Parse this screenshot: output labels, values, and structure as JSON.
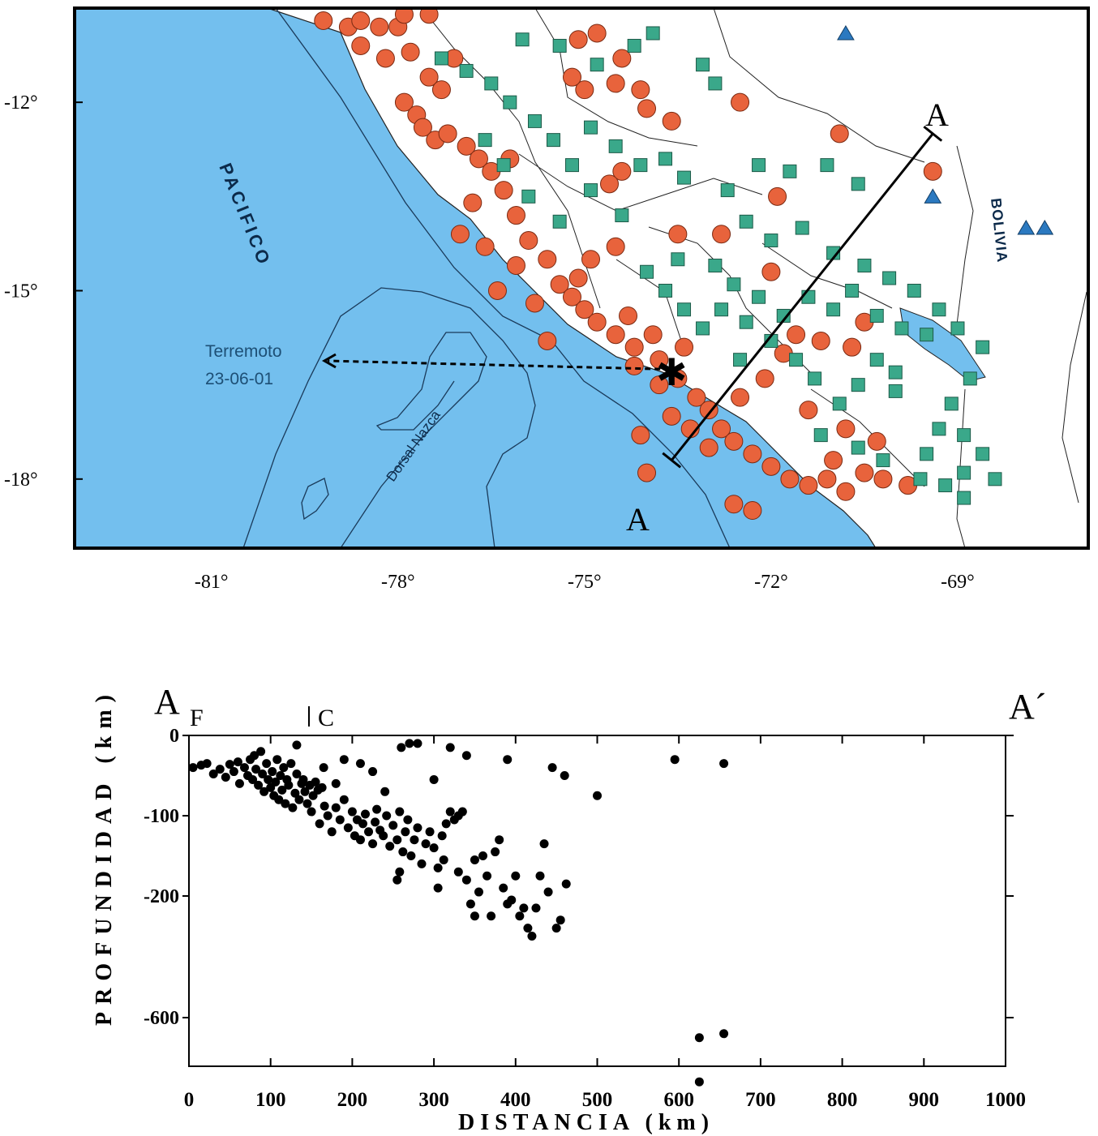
{
  "colors": {
    "ocean": "#73bfee",
    "land": "#ffffff",
    "shallow_quake": "#e8633c",
    "intermediate_quake": "#3aa88a",
    "volcano": "#2b79c0",
    "profile_dot": "#000000"
  },
  "map": {
    "labels": {
      "ocean_name": "PACIFICO",
      "country": "BOLIVIA",
      "ridge": "Dorsal Nazca",
      "quake_line1": "Terremoto",
      "quake_line2": "23-06-01",
      "section_start": "A",
      "section_end": "A"
    },
    "lon_ticks": [
      "-81°",
      "-78°",
      "-75°",
      "-72°",
      "-69°"
    ],
    "lat_ticks": [
      "-12°",
      "-15°",
      "-18°"
    ],
    "lon_range": [
      -83.2,
      -66.9
    ],
    "lat_range": [
      -10.5,
      -19.1
    ],
    "epicenter": {
      "lon": -73.6,
      "lat": -16.3
    },
    "section_line": {
      "start": [
        -73.6,
        -17.7
      ],
      "end": [
        -69.4,
        -12.5
      ]
    },
    "volcanoes": [
      [
        -70.8,
        -10.9
      ],
      [
        -69.4,
        -13.5
      ],
      [
        -67.9,
        -14.0
      ],
      [
        -67.6,
        -14.0
      ]
    ],
    "shallow_events": [
      [
        -79.2,
        -10.7
      ],
      [
        -78.8,
        -10.8
      ],
      [
        -78.6,
        -10.7
      ],
      [
        -78.3,
        -10.8
      ],
      [
        -78.0,
        -10.8
      ],
      [
        -78.6,
        -11.1
      ],
      [
        -78.2,
        -11.3
      ],
      [
        -77.8,
        -11.2
      ],
      [
        -77.5,
        -11.6
      ],
      [
        -77.3,
        -11.8
      ],
      [
        -77.9,
        -12.0
      ],
      [
        -77.7,
        -12.2
      ],
      [
        -77.6,
        -12.4
      ],
      [
        -77.4,
        -12.6
      ],
      [
        -77.2,
        -12.5
      ],
      [
        -76.9,
        -12.7
      ],
      [
        -76.7,
        -12.9
      ],
      [
        -76.5,
        -13.1
      ],
      [
        -76.3,
        -13.4
      ],
      [
        -76.1,
        -13.8
      ],
      [
        -75.9,
        -14.2
      ],
      [
        -75.6,
        -14.5
      ],
      [
        -75.4,
        -14.9
      ],
      [
        -75.2,
        -15.1
      ],
      [
        -75.0,
        -15.3
      ],
      [
        -74.8,
        -15.5
      ],
      [
        -74.5,
        -15.7
      ],
      [
        -74.2,
        -15.9
      ],
      [
        -73.8,
        -16.1
      ],
      [
        -73.5,
        -16.4
      ],
      [
        -73.2,
        -16.7
      ],
      [
        -73.0,
        -16.9
      ],
      [
        -72.8,
        -17.2
      ],
      [
        -72.6,
        -17.4
      ],
      [
        -72.3,
        -17.6
      ],
      [
        -72.0,
        -17.8
      ],
      [
        -71.7,
        -18.0
      ],
      [
        -71.4,
        -18.1
      ],
      [
        -71.1,
        -18.0
      ],
      [
        -70.8,
        -18.2
      ],
      [
        -70.5,
        -17.9
      ],
      [
        -70.2,
        -18.0
      ],
      [
        -69.8,
        -18.1
      ],
      [
        -72.6,
        -18.4
      ],
      [
        -72.3,
        -18.5
      ],
      [
        -73.0,
        -17.5
      ],
      [
        -73.3,
        -17.2
      ],
      [
        -73.6,
        -17.0
      ],
      [
        -74.1,
        -17.3
      ],
      [
        -74.0,
        -17.9
      ],
      [
        -75.1,
        -11.0
      ],
      [
        -74.8,
        -10.9
      ],
      [
        -74.4,
        -11.3
      ],
      [
        -74.5,
        -11.7
      ],
      [
        -74.1,
        -11.8
      ],
      [
        -74.0,
        -12.1
      ],
      [
        -75.0,
        -11.8
      ],
      [
        -75.2,
        -11.6
      ],
      [
        -73.6,
        -12.3
      ],
      [
        -72.5,
        -12.0
      ],
      [
        -70.9,
        -12.5
      ],
      [
        -69.4,
        -13.1
      ],
      [
        -71.9,
        -13.5
      ],
      [
        -72.8,
        -14.1
      ],
      [
        -73.5,
        -14.1
      ],
      [
        -74.4,
        -13.1
      ],
      [
        -74.6,
        -13.3
      ],
      [
        -74.5,
        -14.3
      ],
      [
        -74.9,
        -14.5
      ],
      [
        -75.1,
        -14.8
      ],
      [
        -75.6,
        -15.8
      ],
      [
        -75.8,
        -15.2
      ],
      [
        -76.1,
        -14.6
      ],
      [
        -76.4,
        -15.0
      ],
      [
        -77.0,
        -14.1
      ],
      [
        -76.8,
        -13.6
      ],
      [
        -76.2,
        -12.9
      ],
      [
        -77.1,
        -11.3
      ],
      [
        -77.5,
        -10.6
      ],
      [
        -77.9,
        -10.6
      ],
      [
        -71.6,
        -15.7
      ],
      [
        -71.2,
        -15.8
      ],
      [
        -70.7,
        -15.9
      ],
      [
        -71.8,
        -16.0
      ],
      [
        -72.1,
        -16.4
      ],
      [
        -71.4,
        -16.9
      ],
      [
        -70.8,
        -17.2
      ],
      [
        -70.3,
        -17.4
      ],
      [
        -71.0,
        -17.7
      ],
      [
        -72.5,
        -16.7
      ],
      [
        -73.8,
        -16.5
      ],
      [
        -74.2,
        -16.2
      ],
      [
        -73.4,
        -15.9
      ],
      [
        -76.6,
        -14.3
      ],
      [
        -70.5,
        -15.5
      ],
      [
        -72.0,
        -14.7
      ],
      [
        -74.3,
        -15.4
      ],
      [
        -73.9,
        -15.7
      ]
    ],
    "intermediate_events": [
      [
        -76.0,
        -11.0
      ],
      [
        -75.4,
        -11.1
      ],
      [
        -74.8,
        -11.4
      ],
      [
        -74.2,
        -11.1
      ],
      [
        -73.9,
        -10.9
      ],
      [
        -73.1,
        -11.4
      ],
      [
        -72.9,
        -11.7
      ],
      [
        -74.9,
        -12.4
      ],
      [
        -74.5,
        -12.7
      ],
      [
        -74.1,
        -13.0
      ],
      [
        -73.7,
        -12.9
      ],
      [
        -73.4,
        -13.2
      ],
      [
        -72.7,
        -13.4
      ],
      [
        -72.2,
        -13.0
      ],
      [
        -71.7,
        -13.1
      ],
      [
        -71.1,
        -13.0
      ],
      [
        -70.6,
        -13.3
      ],
      [
        -72.4,
        -13.9
      ],
      [
        -72.0,
        -14.2
      ],
      [
        -71.5,
        -14.0
      ],
      [
        -71.0,
        -14.4
      ],
      [
        -70.5,
        -14.6
      ],
      [
        -70.1,
        -14.8
      ],
      [
        -69.7,
        -15.0
      ],
      [
        -69.3,
        -15.3
      ],
      [
        -69.0,
        -15.6
      ],
      [
        -68.6,
        -15.9
      ],
      [
        -68.8,
        -16.4
      ],
      [
        -69.1,
        -16.8
      ],
      [
        -69.3,
        -17.2
      ],
      [
        -69.5,
        -17.6
      ],
      [
        -69.6,
        -18.0
      ],
      [
        -69.2,
        -18.1
      ],
      [
        -68.9,
        -17.9
      ],
      [
        -68.6,
        -17.6
      ],
      [
        -68.9,
        -17.3
      ],
      [
        -70.0,
        -16.6
      ],
      [
        -70.3,
        -16.1
      ],
      [
        -70.6,
        -16.5
      ],
      [
        -70.9,
        -16.8
      ],
      [
        -71.3,
        -16.4
      ],
      [
        -71.6,
        -16.1
      ],
      [
        -72.0,
        -15.8
      ],
      [
        -72.4,
        -15.5
      ],
      [
        -72.8,
        -15.3
      ],
      [
        -73.1,
        -15.6
      ],
      [
        -73.4,
        -15.3
      ],
      [
        -73.7,
        -15.0
      ],
      [
        -74.0,
        -14.7
      ],
      [
        -73.5,
        -14.5
      ],
      [
        -72.9,
        -14.6
      ],
      [
        -72.6,
        -14.9
      ],
      [
        -72.2,
        -15.1
      ],
      [
        -71.8,
        -15.4
      ],
      [
        -71.4,
        -15.1
      ],
      [
        -71.0,
        -15.3
      ],
      [
        -70.7,
        -15.0
      ],
      [
        -70.3,
        -15.4
      ],
      [
        -69.9,
        -15.6
      ],
      [
        -69.5,
        -15.7
      ],
      [
        -75.8,
        -12.3
      ],
      [
        -75.5,
        -12.6
      ],
      [
        -75.2,
        -13.0
      ],
      [
        -76.2,
        -12.0
      ],
      [
        -76.5,
        -11.7
      ],
      [
        -76.9,
        -11.5
      ],
      [
        -77.3,
        -11.3
      ],
      [
        -76.6,
        -12.6
      ],
      [
        -76.3,
        -13.0
      ],
      [
        -75.9,
        -13.5
      ],
      [
        -75.4,
        -13.9
      ],
      [
        -74.9,
        -13.4
      ],
      [
        -74.4,
        -13.8
      ],
      [
        -70.2,
        -17.7
      ],
      [
        -70.6,
        -17.5
      ],
      [
        -71.2,
        -17.3
      ],
      [
        -68.9,
        -18.3
      ],
      [
        -68.4,
        -18.0
      ],
      [
        -70.0,
        -16.3
      ],
      [
        -72.5,
        -16.1
      ]
    ]
  },
  "profile": {
    "ylabel": "PROFUNDIDAD (km)",
    "xlabel": "DISTANCIA (km)",
    "x_ticks": [
      "0",
      "100",
      "200",
      "300",
      "400",
      "500",
      "600",
      "700",
      "800",
      "900",
      "1000"
    ],
    "y_ticks": [
      "0",
      "-100",
      "-200",
      "-600"
    ],
    "label_start": "A",
    "label_end": "A´",
    "label_f": "F",
    "label_c": "C",
    "xlim": [
      0,
      1000
    ],
    "points": [
      [
        5,
        -40
      ],
      [
        15,
        -37
      ],
      [
        22,
        -35
      ],
      [
        30,
        -48
      ],
      [
        38,
        -42
      ],
      [
        45,
        -52
      ],
      [
        50,
        -36
      ],
      [
        55,
        -45
      ],
      [
        60,
        -33
      ],
      [
        62,
        -60
      ],
      [
        68,
        -40
      ],
      [
        72,
        -50
      ],
      [
        75,
        -30
      ],
      [
        78,
        -55
      ],
      [
        80,
        -25
      ],
      [
        82,
        -42
      ],
      [
        85,
        -62
      ],
      [
        88,
        -20
      ],
      [
        90,
        -48
      ],
      [
        92,
        -70
      ],
      [
        95,
        -35
      ],
      [
        97,
        -55
      ],
      [
        100,
        -65
      ],
      [
        102,
        -45
      ],
      [
        104,
        -75
      ],
      [
        106,
        -58
      ],
      [
        108,
        -30
      ],
      [
        110,
        -80
      ],
      [
        112,
        -50
      ],
      [
        114,
        -68
      ],
      [
        116,
        -40
      ],
      [
        118,
        -85
      ],
      [
        120,
        -55
      ],
      [
        122,
        -62
      ],
      [
        125,
        -35
      ],
      [
        127,
        -90
      ],
      [
        130,
        -72
      ],
      [
        132,
        -48
      ],
      [
        135,
        -80
      ],
      [
        138,
        -60
      ],
      [
        140,
        -55
      ],
      [
        142,
        -70
      ],
      [
        145,
        -85
      ],
      [
        148,
        -62
      ],
      [
        150,
        -95
      ],
      [
        152,
        -75
      ],
      [
        155,
        -58
      ],
      [
        158,
        -68
      ],
      [
        160,
        -110
      ],
      [
        163,
        -65
      ],
      [
        166,
        -88
      ],
      [
        170,
        -100
      ],
      [
        175,
        -120
      ],
      [
        180,
        -90
      ],
      [
        185,
        -105
      ],
      [
        190,
        -80
      ],
      [
        195,
        -115
      ],
      [
        200,
        -95
      ],
      [
        203,
        -125
      ],
      [
        206,
        -105
      ],
      [
        210,
        -130
      ],
      [
        213,
        -110
      ],
      [
        216,
        -98
      ],
      [
        220,
        -120
      ],
      [
        225,
        -135
      ],
      [
        228,
        -108
      ],
      [
        230,
        -92
      ],
      [
        234,
        -118
      ],
      [
        238,
        -125
      ],
      [
        242,
        -100
      ],
      [
        246,
        -138
      ],
      [
        250,
        -112
      ],
      [
        255,
        -130
      ],
      [
        258,
        -95
      ],
      [
        262,
        -145
      ],
      [
        265,
        -120
      ],
      [
        268,
        -105
      ],
      [
        272,
        -150
      ],
      [
        276,
        -130
      ],
      [
        280,
        -115
      ],
      [
        285,
        -160
      ],
      [
        290,
        -135
      ],
      [
        295,
        -120
      ],
      [
        300,
        -140
      ],
      [
        305,
        -165
      ],
      [
        310,
        -125
      ],
      [
        315,
        -110
      ],
      [
        320,
        -95
      ],
      [
        325,
        -105
      ],
      [
        330,
        -170
      ],
      [
        335,
        -95
      ],
      [
        340,
        -180
      ],
      [
        345,
        -210
      ],
      [
        350,
        -155
      ],
      [
        355,
        -195
      ],
      [
        360,
        -150
      ],
      [
        365,
        -175
      ],
      [
        370,
        -225
      ],
      [
        375,
        -145
      ],
      [
        380,
        -130
      ],
      [
        385,
        -190
      ],
      [
        390,
        -210
      ],
      [
        395,
        -205
      ],
      [
        400,
        -175
      ],
      [
        405,
        -225
      ],
      [
        410,
        -215
      ],
      [
        415,
        -240
      ],
      [
        420,
        -250
      ],
      [
        425,
        -215
      ],
      [
        430,
        -175
      ],
      [
        435,
        -135
      ],
      [
        440,
        -195
      ],
      [
        445,
        -40
      ],
      [
        450,
        -240
      ],
      [
        455,
        -230
      ],
      [
        460,
        -50
      ],
      [
        462,
        -185
      ],
      [
        190,
        -30
      ],
      [
        210,
        -35
      ],
      [
        225,
        -45
      ],
      [
        260,
        -15
      ],
      [
        270,
        -10
      ],
      [
        280,
        -10
      ],
      [
        300,
        -55
      ],
      [
        320,
        -15
      ],
      [
        340,
        -25
      ],
      [
        390,
        -30
      ],
      [
        500,
        -75
      ],
      [
        595,
        -30
      ],
      [
        655,
        -35
      ],
      [
        625,
        -625
      ],
      [
        655,
        -620
      ],
      [
        625,
        -680
      ],
      [
        180,
        -60
      ],
      [
        240,
        -70
      ],
      [
        255,
        -180
      ],
      [
        258,
        -170
      ],
      [
        305,
        -190
      ],
      [
        330,
        -100
      ],
      [
        132,
        -12
      ],
      [
        312,
        -155
      ],
      [
        350,
        -225
      ],
      [
        165,
        -40
      ]
    ]
  }
}
